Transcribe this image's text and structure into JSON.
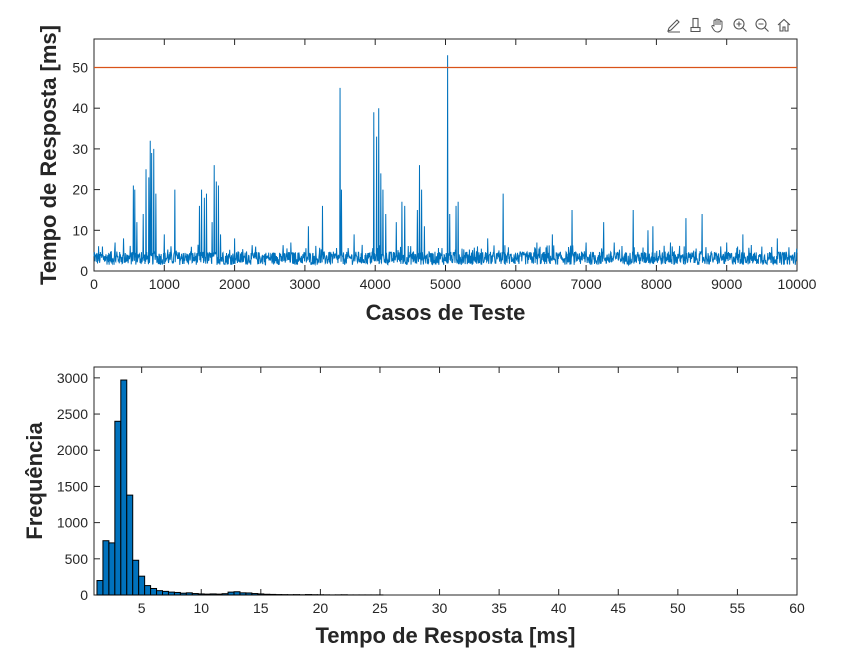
{
  "toolbar": {
    "icons": [
      "data-tips-icon",
      "brush-icon",
      "pan-hand-icon",
      "zoom-in-icon",
      "zoom-out-icon",
      "home-icon"
    ]
  },
  "chart_data": [
    {
      "type": "line",
      "xlabel": "Casos de Teste",
      "ylabel": "Tempo de Resposta [ms]",
      "xlim": [
        0,
        10000
      ],
      "ylim": [
        0,
        57
      ],
      "xticks": [
        0,
        1000,
        2000,
        3000,
        4000,
        5000,
        6000,
        7000,
        8000,
        9000,
        10000
      ],
      "yticks": [
        0,
        10,
        20,
        30,
        40,
        50
      ],
      "grid": false,
      "series_color": "#0072bd",
      "threshold": {
        "y": 50,
        "color": "#d95319"
      },
      "baseline_range": [
        1.5,
        6.5
      ],
      "spikes": [
        {
          "x": 120,
          "y": 6
        },
        {
          "x": 300,
          "y": 7
        },
        {
          "x": 420,
          "y": 8
        },
        {
          "x": 560,
          "y": 21
        },
        {
          "x": 580,
          "y": 20
        },
        {
          "x": 610,
          "y": 12
        },
        {
          "x": 700,
          "y": 14
        },
        {
          "x": 740,
          "y": 25
        },
        {
          "x": 780,
          "y": 23
        },
        {
          "x": 800,
          "y": 32
        },
        {
          "x": 820,
          "y": 29
        },
        {
          "x": 850,
          "y": 30
        },
        {
          "x": 880,
          "y": 19
        },
        {
          "x": 1000,
          "y": 9
        },
        {
          "x": 1150,
          "y": 20
        },
        {
          "x": 1500,
          "y": 16
        },
        {
          "x": 1530,
          "y": 20
        },
        {
          "x": 1570,
          "y": 18
        },
        {
          "x": 1600,
          "y": 19
        },
        {
          "x": 1680,
          "y": 12
        },
        {
          "x": 1710,
          "y": 26
        },
        {
          "x": 1740,
          "y": 22
        },
        {
          "x": 1770,
          "y": 21
        },
        {
          "x": 1800,
          "y": 9
        },
        {
          "x": 2000,
          "y": 8
        },
        {
          "x": 2300,
          "y": 6
        },
        {
          "x": 2800,
          "y": 7
        },
        {
          "x": 3050,
          "y": 11
        },
        {
          "x": 3250,
          "y": 16
        },
        {
          "x": 3500,
          "y": 45
        },
        {
          "x": 3520,
          "y": 20
        },
        {
          "x": 3700,
          "y": 9
        },
        {
          "x": 3980,
          "y": 39
        },
        {
          "x": 4020,
          "y": 33
        },
        {
          "x": 4050,
          "y": 40
        },
        {
          "x": 4080,
          "y": 24
        },
        {
          "x": 4110,
          "y": 20
        },
        {
          "x": 4150,
          "y": 14
        },
        {
          "x": 4300,
          "y": 12
        },
        {
          "x": 4380,
          "y": 17
        },
        {
          "x": 4420,
          "y": 16
        },
        {
          "x": 4600,
          "y": 15
        },
        {
          "x": 4630,
          "y": 26
        },
        {
          "x": 4660,
          "y": 20
        },
        {
          "x": 4700,
          "y": 11
        },
        {
          "x": 5030,
          "y": 53
        },
        {
          "x": 5060,
          "y": 14
        },
        {
          "x": 5150,
          "y": 16
        },
        {
          "x": 5180,
          "y": 17
        },
        {
          "x": 5600,
          "y": 8
        },
        {
          "x": 5820,
          "y": 19
        },
        {
          "x": 6300,
          "y": 7
        },
        {
          "x": 6520,
          "y": 9
        },
        {
          "x": 6800,
          "y": 15
        },
        {
          "x": 7000,
          "y": 7
        },
        {
          "x": 7250,
          "y": 12
        },
        {
          "x": 7400,
          "y": 7
        },
        {
          "x": 7670,
          "y": 15
        },
        {
          "x": 7880,
          "y": 10
        },
        {
          "x": 7950,
          "y": 11
        },
        {
          "x": 8200,
          "y": 7
        },
        {
          "x": 8420,
          "y": 13
        },
        {
          "x": 8650,
          "y": 14
        },
        {
          "x": 9000,
          "y": 7
        },
        {
          "x": 9230,
          "y": 9
        },
        {
          "x": 9500,
          "y": 6
        },
        {
          "x": 9720,
          "y": 8
        }
      ]
    },
    {
      "type": "bar",
      "xlabel": "Tempo de Resposta [ms]",
      "ylabel": "Frequência",
      "xlim": [
        1,
        60
      ],
      "ylim": [
        0,
        3150
      ],
      "xticks": [
        5,
        10,
        15,
        20,
        25,
        30,
        35,
        40,
        45,
        50,
        55,
        60
      ],
      "yticks": [
        0,
        500,
        1000,
        1500,
        2000,
        2500,
        3000
      ],
      "grid": false,
      "bar_color": "#0072bd",
      "bin_width": 0.5,
      "bin_start": 1.25,
      "values": [
        200,
        750,
        720,
        2400,
        2970,
        1380,
        480,
        260,
        130,
        90,
        60,
        50,
        40,
        35,
        25,
        30,
        20,
        15,
        12,
        15,
        12,
        18,
        40,
        45,
        30,
        28,
        20,
        15,
        10,
        8,
        6,
        5,
        4,
        5,
        3,
        6,
        4,
        3,
        2,
        1,
        2,
        3,
        1,
        1,
        1,
        1,
        1,
        1
      ]
    }
  ]
}
